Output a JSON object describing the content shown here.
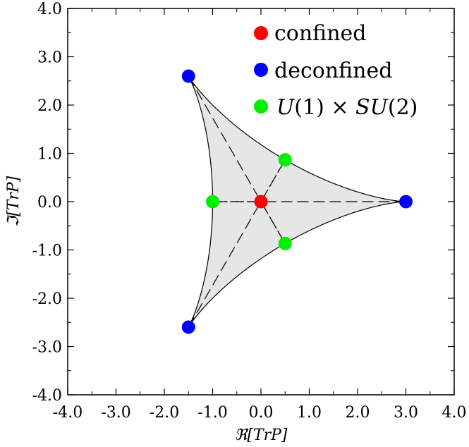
{
  "chart_data": {
    "type": "scatter",
    "title": "",
    "xlabel": "ℜ[TrP]",
    "ylabel": "ℑ[TrP]",
    "xlim": [
      -4.0,
      4.0
    ],
    "ylim": [
      -4.0,
      4.0
    ],
    "xticks": [
      -4.0,
      -3.0,
      -2.0,
      -1.0,
      0.0,
      1.0,
      2.0,
      3.0,
      4.0
    ],
    "yticks": [
      -4.0,
      -3.0,
      -2.0,
      -1.0,
      0.0,
      1.0,
      2.0,
      3.0,
      4.0
    ],
    "xtick_labels": [
      "-4.0",
      "-3.0",
      "-2.0",
      "-1.0",
      "0.0",
      "1.0",
      "2.0",
      "3.0",
      "4.0"
    ],
    "ytick_labels": [
      "-4.0",
      "-3.0",
      "-2.0",
      "-1.0",
      "0.0",
      "1.0",
      "2.0",
      "3.0",
      "4.0"
    ],
    "grid": false,
    "legend_position": "top-right",
    "region": {
      "description": "Filled curved triangle bounded by hypocycloid arcs between the three deconfined points",
      "fill": "#e6e6e6",
      "vertices": [
        [
          3.0,
          0.0
        ],
        [
          -1.5,
          2.598
        ],
        [
          -1.5,
          -2.598
        ]
      ]
    },
    "series": [
      {
        "name": "confined",
        "color": "#ff0000",
        "points": [
          [
            0.0,
            0.0
          ]
        ]
      },
      {
        "name": "deconfined",
        "color": "#0000ff",
        "points": [
          [
            3.0,
            0.0
          ],
          [
            -1.5,
            2.598
          ],
          [
            -1.5,
            -2.598
          ]
        ]
      },
      {
        "name": "U(1) × SU(2)",
        "color": "#00ee00",
        "points": [
          [
            -1.0,
            0.0
          ],
          [
            0.5,
            0.866
          ],
          [
            0.5,
            -0.866
          ]
        ]
      }
    ],
    "legend": {
      "confined": "confined",
      "deconfined": "deconfined",
      "mixed_parts": [
        "U",
        "(1) × ",
        "SU",
        "(2)"
      ]
    }
  }
}
